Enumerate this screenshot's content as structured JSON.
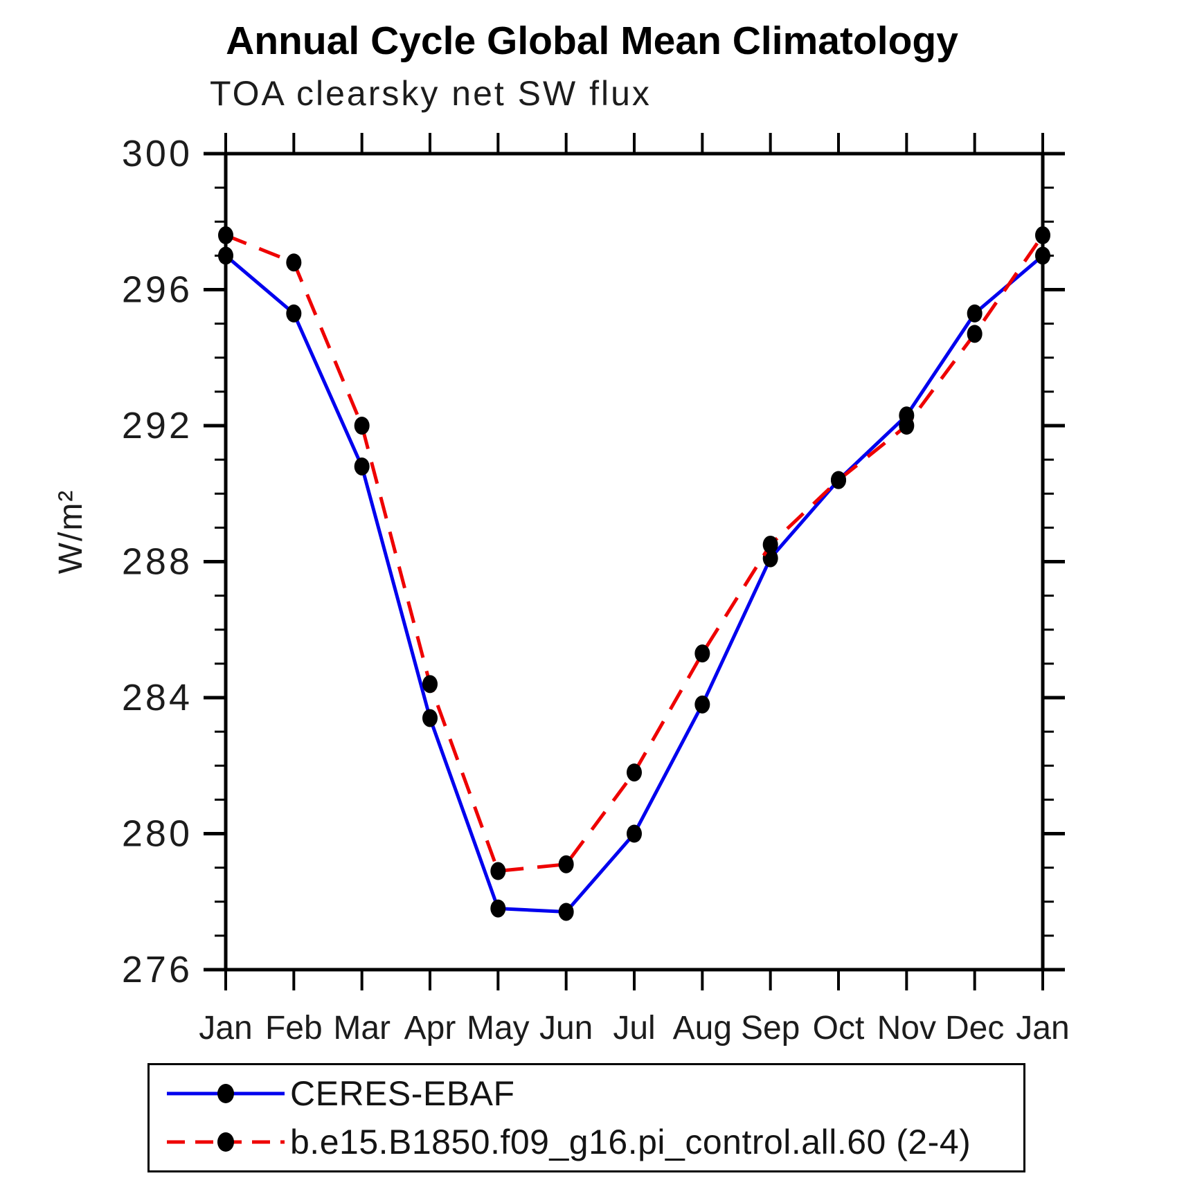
{
  "title": "Annual Cycle Global Mean Climatology",
  "subtitle": "TOA clearsky net SW flux",
  "y_axis_label": "W/m²",
  "legend": {
    "entries": [
      {
        "label": "CERES-EBAF",
        "color": "#0000ee",
        "style": "solid"
      },
      {
        "label": "b.e15.B1850.f09_g16.pi_control.all.60 (2-4)",
        "color": "#ee0000",
        "style": "dashed"
      }
    ]
  },
  "chart_data": {
    "type": "line",
    "title": "Annual Cycle Global Mean Climatology",
    "subtitle": "TOA clearsky net SW flux",
    "xlabel": "",
    "ylabel": "W/m²",
    "x_tick_labels": [
      "Jan",
      "Feb",
      "Mar",
      "Apr",
      "May",
      "Jun",
      "Jul",
      "Aug",
      "Sep",
      "Oct",
      "Nov",
      "Dec",
      "Jan"
    ],
    "ylim": [
      276,
      300
    ],
    "y_major_ticks": [
      276,
      280,
      284,
      288,
      292,
      296,
      300
    ],
    "y_minor_tick_interval": 1,
    "grid": false,
    "legend_position": "bottom-left-box",
    "marker_color": "#000000",
    "series": [
      {
        "name": "CERES-EBAF",
        "color": "#0000ee",
        "line_style": "solid",
        "marker": "circle",
        "values": [
          297.0,
          295.3,
          290.8,
          283.4,
          277.8,
          277.7,
          280.0,
          283.8,
          288.1,
          290.4,
          292.3,
          295.3,
          297.0
        ]
      },
      {
        "name": "b.e15.B1850.f09_g16.pi_control.all.60 (2-4)",
        "color": "#ee0000",
        "line_style": "dashed",
        "marker": "circle",
        "values": [
          297.6,
          296.8,
          292.0,
          284.4,
          278.9,
          279.1,
          281.8,
          285.3,
          288.5,
          290.4,
          292.0,
          294.7,
          297.6
        ]
      }
    ]
  }
}
